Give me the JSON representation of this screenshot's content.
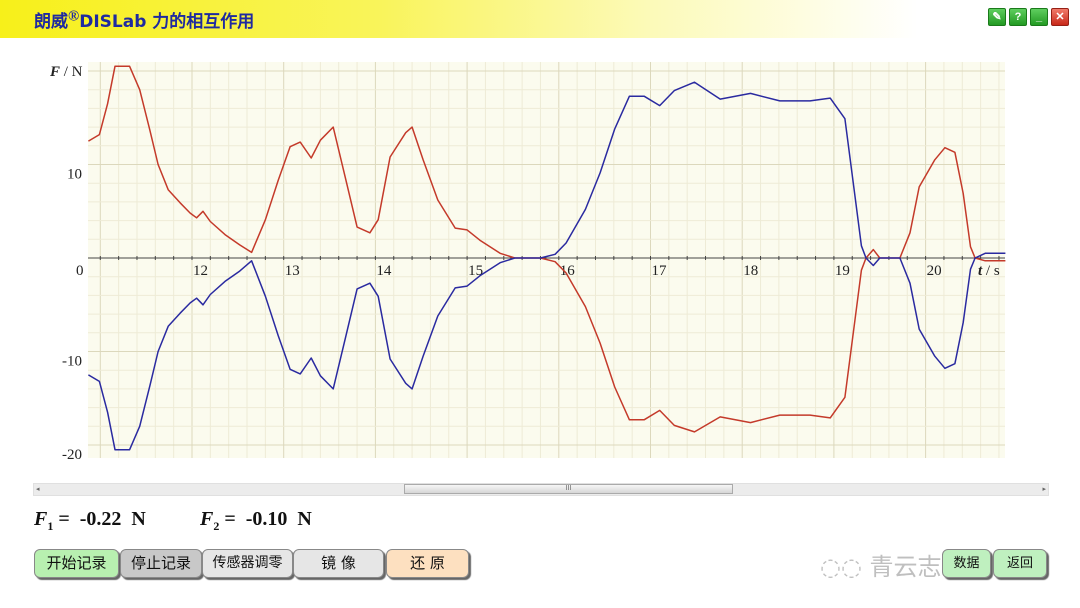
{
  "header": {
    "title_prefix": "朗威",
    "title_reg": "®",
    "title_suffix": "DISLab 力的相互作用"
  },
  "window_buttons": [
    {
      "icon": "pen-icon",
      "label": "✎"
    },
    {
      "icon": "help-icon",
      "label": "?"
    },
    {
      "icon": "minimize-icon",
      "label": "_"
    },
    {
      "icon": "close-icon",
      "label": "✕"
    }
  ],
  "chart_data": {
    "type": "line",
    "ylabel_var": "F",
    "ylabel_unit": " / N",
    "xlabel_var": "t",
    "xlabel_unit": " / s",
    "xlim": [
      10.87,
      20.87
    ],
    "ylim": [
      -21,
      21
    ],
    "x_ticks": [
      12,
      13,
      14,
      15,
      16,
      17,
      18,
      19,
      20
    ],
    "y_ticks": [
      10,
      0,
      -10,
      -20
    ],
    "origin_label": "0",
    "grid": true,
    "background": "#fbfbee",
    "series": [
      {
        "color": "#c43a2a",
        "points": [
          [
            10.87,
            12.5
          ],
          [
            10.99,
            13.2
          ],
          [
            11.08,
            16.5
          ],
          [
            11.16,
            20.5
          ],
          [
            11.32,
            20.5
          ],
          [
            11.43,
            18
          ],
          [
            11.54,
            13.7
          ],
          [
            11.63,
            10
          ],
          [
            11.74,
            7.3
          ],
          [
            11.87,
            5.9
          ],
          [
            11.98,
            4.8
          ],
          [
            12.05,
            4.3
          ],
          [
            12.12,
            5.0
          ],
          [
            12.2,
            3.9
          ],
          [
            12.36,
            2.5
          ],
          [
            12.52,
            1.4
          ],
          [
            12.65,
            0.6
          ],
          [
            12.8,
            4.1
          ],
          [
            12.94,
            8.3
          ],
          [
            13.07,
            11.9
          ],
          [
            13.18,
            12.4
          ],
          [
            13.3,
            10.7
          ],
          [
            13.4,
            12.6
          ],
          [
            13.54,
            14.0
          ],
          [
            13.67,
            8.7
          ],
          [
            13.8,
            3.3
          ],
          [
            13.94,
            2.7
          ],
          [
            14.03,
            4.1
          ],
          [
            14.16,
            10.8
          ],
          [
            14.33,
            13.4
          ],
          [
            14.4,
            14.0
          ],
          [
            14.52,
            10.5
          ],
          [
            14.68,
            6.2
          ],
          [
            14.87,
            3.2
          ],
          [
            15.0,
            3.0
          ],
          [
            15.14,
            1.9
          ],
          [
            15.36,
            0.5
          ],
          [
            15.52,
            0
          ],
          [
            15.8,
            0
          ],
          [
            15.96,
            -0.4
          ],
          [
            16.08,
            -1.6
          ],
          [
            16.29,
            -5.2
          ],
          [
            16.45,
            -9.1
          ],
          [
            16.61,
            -13.8
          ],
          [
            16.77,
            -17.3
          ],
          [
            16.93,
            -17.3
          ],
          [
            17.1,
            -16.3
          ],
          [
            17.26,
            -17.9
          ],
          [
            17.48,
            -18.6
          ],
          [
            17.76,
            -17.0
          ],
          [
            18.09,
            -17.6
          ],
          [
            18.41,
            -16.8
          ],
          [
            18.74,
            -16.8
          ],
          [
            18.96,
            -17.1
          ],
          [
            19.12,
            -14.9
          ],
          [
            19.23,
            -6.6
          ],
          [
            19.3,
            -1.3
          ],
          [
            19.35,
            0
          ],
          [
            19.43,
            0.9
          ],
          [
            19.5,
            0
          ],
          [
            19.72,
            0
          ],
          [
            19.83,
            2.7
          ],
          [
            19.93,
            7.6
          ],
          [
            20.1,
            10.5
          ],
          [
            20.21,
            11.8
          ],
          [
            20.32,
            11.3
          ],
          [
            20.41,
            6.9
          ],
          [
            20.49,
            1.2
          ],
          [
            20.54,
            0
          ],
          [
            20.65,
            -0.3
          ],
          [
            20.87,
            -0.3
          ]
        ]
      },
      {
        "color": "#2a2aa0",
        "points": [
          [
            10.87,
            -12.5
          ],
          [
            10.99,
            -13.2
          ],
          [
            11.08,
            -16.5
          ],
          [
            11.16,
            -20.5
          ],
          [
            11.32,
            -20.5
          ],
          [
            11.43,
            -18
          ],
          [
            11.54,
            -13.7
          ],
          [
            11.63,
            -10
          ],
          [
            11.74,
            -7.3
          ],
          [
            11.87,
            -5.9
          ],
          [
            11.98,
            -4.8
          ],
          [
            12.05,
            -4.3
          ],
          [
            12.12,
            -5.0
          ],
          [
            12.2,
            -3.9
          ],
          [
            12.36,
            -2.5
          ],
          [
            12.52,
            -1.4
          ],
          [
            12.65,
            -0.3
          ],
          [
            12.8,
            -4.1
          ],
          [
            12.94,
            -8.3
          ],
          [
            13.07,
            -11.9
          ],
          [
            13.18,
            -12.4
          ],
          [
            13.3,
            -10.7
          ],
          [
            13.4,
            -12.6
          ],
          [
            13.54,
            -14.0
          ],
          [
            13.67,
            -8.7
          ],
          [
            13.8,
            -3.3
          ],
          [
            13.94,
            -2.7
          ],
          [
            14.03,
            -4.1
          ],
          [
            14.16,
            -10.8
          ],
          [
            14.33,
            -13.4
          ],
          [
            14.4,
            -14.0
          ],
          [
            14.52,
            -10.5
          ],
          [
            14.68,
            -6.2
          ],
          [
            14.87,
            -3.2
          ],
          [
            15.0,
            -3.0
          ],
          [
            15.14,
            -1.9
          ],
          [
            15.36,
            -0.5
          ],
          [
            15.52,
            0
          ],
          [
            15.8,
            0
          ],
          [
            15.96,
            0.4
          ],
          [
            16.08,
            1.6
          ],
          [
            16.29,
            5.2
          ],
          [
            16.45,
            9.1
          ],
          [
            16.61,
            13.8
          ],
          [
            16.77,
            17.3
          ],
          [
            16.93,
            17.3
          ],
          [
            17.1,
            16.3
          ],
          [
            17.26,
            17.9
          ],
          [
            17.48,
            18.8
          ],
          [
            17.76,
            17.0
          ],
          [
            18.09,
            17.6
          ],
          [
            18.41,
            16.8
          ],
          [
            18.74,
            16.8
          ],
          [
            18.96,
            17.1
          ],
          [
            19.12,
            14.9
          ],
          [
            19.23,
            6.6
          ],
          [
            19.3,
            1.3
          ],
          [
            19.35,
            0
          ],
          [
            19.43,
            -0.8
          ],
          [
            19.5,
            0
          ],
          [
            19.72,
            0
          ],
          [
            19.83,
            -2.7
          ],
          [
            19.93,
            -7.6
          ],
          [
            20.1,
            -10.5
          ],
          [
            20.21,
            -11.8
          ],
          [
            20.32,
            -11.3
          ],
          [
            20.41,
            -6.9
          ],
          [
            20.49,
            -1.2
          ],
          [
            20.54,
            0
          ],
          [
            20.65,
            0.5
          ],
          [
            20.87,
            0.5
          ]
        ]
      }
    ]
  },
  "readouts": {
    "f1_var": "F",
    "f1_sub": "1",
    "f1_text": " =  -0.22  N",
    "f2_var": "F",
    "f2_sub": "2",
    "f2_text": " =  -0.10  N"
  },
  "scrollbar": {
    "thumb_grip": "III",
    "left_arrow": "◂",
    "right_arrow": "▸"
  },
  "buttons": {
    "start": "开始记录",
    "stop": "停止记录",
    "zero": "传感器调零",
    "mirror": "镜 像",
    "restore": "还 原",
    "data": "数据",
    "back": "返回"
  },
  "colors": {
    "start_btn": "#b8f0b0",
    "stop_btn": "#c8c8c8",
    "zero_btn": "#e6e6e6",
    "mirror_btn": "#e6e6e6",
    "restore_btn": "#fde0c0",
    "nav_btn": "#bff0bf"
  },
  "watermark": "青云志"
}
